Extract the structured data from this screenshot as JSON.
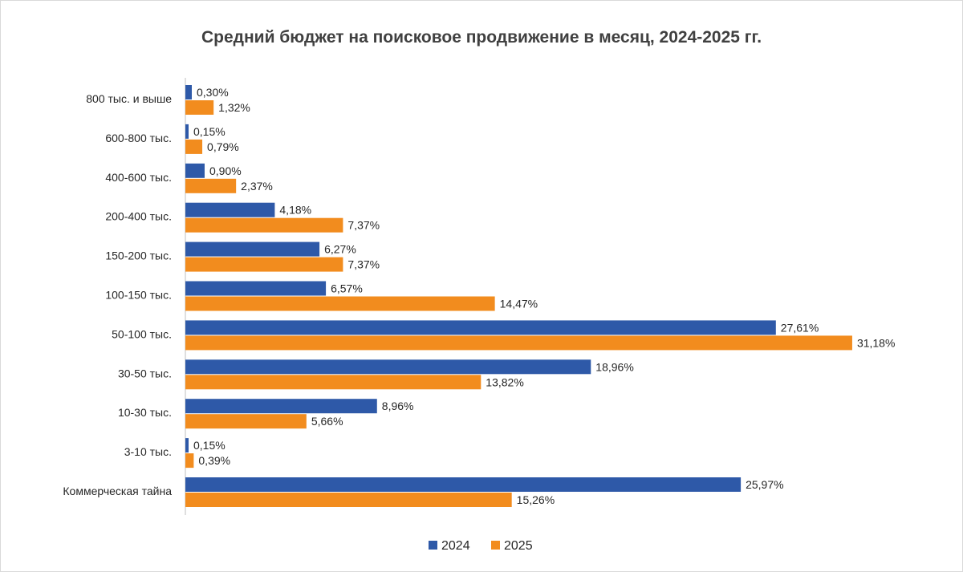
{
  "chart_data": {
    "type": "bar",
    "orientation": "horizontal",
    "title": "Средний бюджет на поисковое продвижение в месяц, 2024-2025 гг.",
    "xlabel": "",
    "ylabel": "",
    "xlim": [
      0,
      32
    ],
    "grid": false,
    "legend_position": "bottom",
    "categories": [
      "800 тыс. и выше",
      "600-800 тыс.",
      "400-600 тыс.",
      "200-400 тыс.",
      "150-200 тыс.",
      "100-150 тыс.",
      "50-100 тыс.",
      "30-50 тыс.",
      "10-30 тыс.",
      "3-10 тыс.",
      "Коммерческая тайна"
    ],
    "series": [
      {
        "name": "2024",
        "color": "#2E59A8",
        "values": [
          0.3,
          0.15,
          0.9,
          4.18,
          6.27,
          6.57,
          27.61,
          18.96,
          8.96,
          0.15,
          25.97
        ],
        "labels": [
          "0,30%",
          "0,15%",
          "0,90%",
          "4,18%",
          "6,27%",
          "6,57%",
          "27,61%",
          "18,96%",
          "8,96%",
          "0,15%",
          "25,97%"
        ]
      },
      {
        "name": "2025",
        "color": "#F28C1E",
        "values": [
          1.32,
          0.79,
          2.37,
          7.37,
          7.37,
          14.47,
          31.18,
          13.82,
          5.66,
          0.39,
          15.26
        ],
        "labels": [
          "1,32%",
          "0,79%",
          "2,37%",
          "7,37%",
          "7,37%",
          "14,47%",
          "31,18%",
          "13,82%",
          "5,66%",
          "0,39%",
          "15,26%"
        ]
      }
    ]
  }
}
